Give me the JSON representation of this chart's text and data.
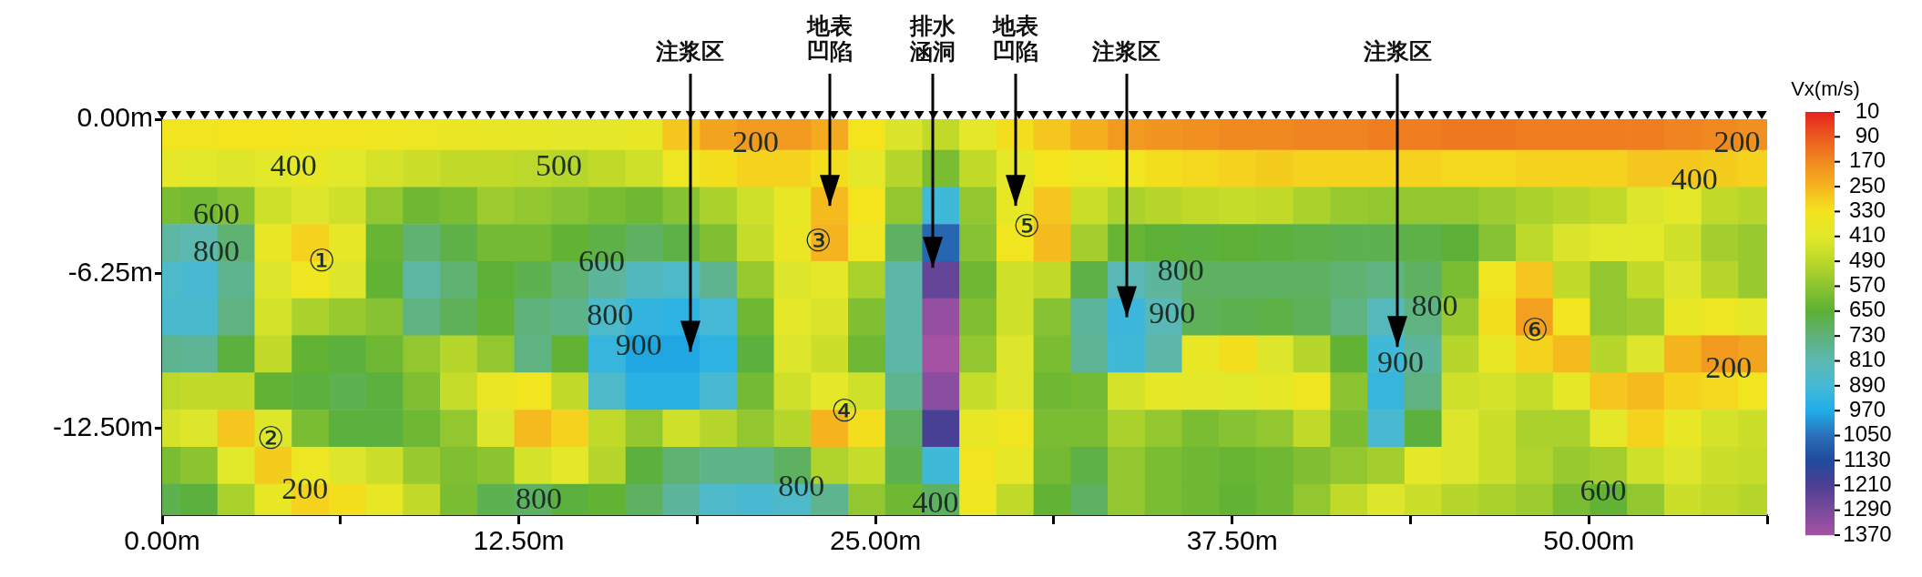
{
  "chart_data": {
    "type": "scatter",
    "marker": "square",
    "xlim": [
      0,
      56.25
    ],
    "xticks": [
      {
        "value": 0,
        "label": "0.00m"
      },
      {
        "value": 6.25,
        "label": null
      },
      {
        "value": 12.5,
        "label": "12.50m"
      },
      {
        "value": 18.75,
        "label": null
      },
      {
        "value": 25,
        "label": "25.00m"
      },
      {
        "value": 31.25,
        "label": null
      },
      {
        "value": 37.5,
        "label": "37.50m"
      },
      {
        "value": 43.75,
        "label": null
      },
      {
        "value": 50,
        "label": "50.00m"
      },
      {
        "value": 56.25,
        "label": null
      }
    ],
    "ylim": [
      -16,
      0
    ],
    "yticks": [
      {
        "value": 0,
        "label": "0.00m"
      },
      {
        "value": -6.25,
        "label": "-6.25m"
      },
      {
        "value": -12.5,
        "label": "-12.50m"
      }
    ],
    "clabel": "Vx(m/s)",
    "clim": [
      1370,
      10
    ],
    "cticks": [
      10,
      90,
      170,
      250,
      330,
      410,
      490,
      570,
      650,
      730,
      810,
      890,
      970,
      1050,
      1130,
      1210,
      1290,
      1370
    ],
    "colors": [
      "#a552a5",
      "#7a4a9c",
      "#4d3f93",
      "#1f4a9c",
      "#2a6fb8",
      "#1faee8",
      "#45b9d6",
      "#5cb8b0",
      "#5fb27a",
      "#5cb035",
      "#8cc430",
      "#bcd82a",
      "#e2e82a",
      "#f3e41e",
      "#f5b41e",
      "#f08a20",
      "#eb5a1f",
      "#e6231d"
    ],
    "series": [
      {
        "x": [
          0,
          1.3,
          2.6,
          3.9,
          5.2,
          6.5,
          7.8,
          9.1,
          10.4,
          11.7,
          13,
          14.3,
          15.6,
          16.9,
          18.2,
          19.5,
          20.8,
          22.1,
          23.4,
          24.7,
          26,
          27.3,
          28.6,
          29.9,
          31.2,
          32.5,
          33.8,
          35.1,
          36.4,
          37.7,
          39,
          40.3,
          41.6,
          42.9,
          44.2,
          45.5,
          46.8,
          48.1,
          49.4,
          50.7,
          52,
          53.3,
          54.6,
          55.9,
          0,
          1.3,
          2.6,
          3.9,
          5.2,
          6.5,
          7.8,
          9.1,
          10.4,
          11.7,
          13,
          14.3,
          15.6,
          16.9,
          18.2,
          19.5,
          20.8,
          22.1,
          23.4,
          24.7,
          26,
          27.3,
          28.6,
          29.9,
          31.2,
          32.5,
          33.8,
          35.1,
          36.4,
          37.7,
          39,
          40.3,
          41.6,
          42.9,
          44.2,
          45.5,
          46.8,
          48.1,
          49.4,
          50.7,
          52,
          53.3,
          54.6,
          55.9,
          0,
          1.3,
          2.6,
          3.9,
          5.2,
          6.5,
          7.8,
          9.1,
          10.4,
          11.7,
          13,
          14.3,
          15.6,
          16.9,
          18.2,
          19.5,
          20.8,
          22.1,
          23.4,
          24.7,
          26,
          27.3,
          28.6,
          29.9,
          31.2,
          32.5,
          33.8,
          35.1,
          36.4,
          37.7,
          39,
          40.3,
          41.6,
          42.9,
          44.2,
          45.5,
          46.8,
          48.1,
          49.4,
          50.7,
          52,
          53.3,
          54.6,
          55.9,
          0,
          1.3,
          2.6,
          3.9,
          5.2,
          6.5,
          7.8,
          9.1,
          10.4,
          11.7,
          13,
          14.3,
          15.6,
          16.9,
          18.2,
          19.5,
          20.8,
          22.1,
          23.4,
          24.7,
          26,
          27.3,
          28.6,
          29.9,
          31.2,
          32.5,
          33.8,
          35.1,
          36.4,
          37.7,
          39,
          40.3,
          41.6,
          42.9,
          44.2,
          45.5,
          46.8,
          48.1,
          49.4,
          50.7,
          52,
          53.3,
          54.6,
          55.9,
          0,
          1.3,
          2.6,
          3.9,
          5.2,
          6.5,
          7.8,
          9.1,
          10.4,
          11.7,
          13,
          14.3,
          15.6,
          16.9,
          18.2,
          19.5,
          20.8,
          22.1,
          23.4,
          24.7,
          26,
          27.3,
          28.6,
          29.9,
          31.2,
          32.5,
          33.8,
          35.1,
          36.4,
          37.7,
          39,
          40.3,
          41.6,
          42.9,
          44.2,
          45.5,
          46.8,
          48.1,
          49.4,
          50.7,
          52,
          53.3,
          54.6,
          55.9,
          0,
          1.3,
          2.6,
          3.9,
          5.2,
          6.5,
          7.8,
          9.1,
          10.4,
          11.7,
          13,
          14.3,
          15.6,
          16.9,
          18.2,
          19.5,
          20.8,
          22.1,
          23.4,
          24.7,
          26,
          27.3,
          28.6,
          29.9,
          31.2,
          32.5,
          33.8,
          35.1,
          36.4,
          37.7,
          39,
          40.3,
          41.6,
          42.9,
          44.2,
          45.5,
          46.8,
          48.1,
          49.4,
          50.7,
          52,
          53.3,
          54.6,
          55.9,
          0,
          1.3,
          2.6,
          3.9,
          5.2,
          6.5,
          7.8,
          9.1,
          10.4,
          11.7,
          13,
          14.3,
          15.6,
          16.9,
          18.2,
          19.5,
          20.8,
          22.1,
          23.4,
          24.7,
          26,
          27.3,
          28.6,
          29.9,
          31.2,
          32.5,
          33.8,
          35.1,
          36.4,
          37.7,
          39,
          40.3,
          41.6,
          42.9,
          44.2,
          45.5,
          46.8,
          48.1,
          49.4,
          50.7,
          52,
          53.3,
          54.6,
          55.9,
          0,
          1.3,
          2.6,
          3.9,
          5.2,
          6.5,
          7.8,
          9.1,
          10.4,
          11.7,
          13,
          14.3,
          15.6,
          16.9,
          18.2,
          19.5,
          20.8,
          22.1,
          23.4,
          24.7,
          26,
          27.3,
          28.6,
          29.9,
          31.2,
          32.5,
          33.8,
          35.1,
          36.4,
          37.7,
          39,
          40.3,
          41.6,
          42.9,
          44.2,
          45.5,
          46.8,
          48.1,
          49.4,
          50.7,
          52,
          53.3,
          54.6,
          55.9,
          0,
          1.3,
          2.6,
          3.9,
          5.2,
          6.5,
          7.8,
          9.1,
          10.4,
          11.7,
          13,
          14.3,
          15.6,
          16.9,
          18.2,
          19.5,
          20.8,
          22.1,
          23.4,
          24.7,
          26,
          27.3,
          28.6,
          29.9,
          31.2,
          32.5,
          33.8,
          35.1,
          36.4,
          37.7,
          39,
          40.3,
          41.6,
          42.9,
          44.2,
          45.5,
          46.8,
          48.1,
          49.4,
          50.7,
          52,
          53.3,
          54.6,
          55.9,
          0,
          1.3,
          2.6,
          3.9,
          5.2,
          6.5,
          7.8,
          9.1,
          10.4,
          11.7,
          13,
          14.3,
          15.6,
          16.9,
          18.2,
          19.5,
          20.8,
          22.1,
          23.4,
          24.7,
          26,
          27.3,
          28.6,
          29.9,
          31.2,
          32.5,
          33.8,
          35.1,
          36.4,
          37.7,
          39,
          40.3,
          41.6,
          42.9,
          44.2,
          45.5,
          46.8,
          48.1,
          49.4,
          50.7,
          52,
          53.3,
          54.6,
          55.9,
          0,
          1.3,
          2.6,
          3.9,
          5.2,
          6.5,
          7.8,
          9.1,
          10.4,
          11.7,
          13,
          14.3,
          15.6,
          16.9,
          18.2,
          19.5,
          20.8,
          22.1,
          23.4,
          24.7,
          26,
          27.3,
          28.6,
          29.9,
          31.2,
          32.5,
          33.8,
          35.1,
          36.4,
          37.7,
          39,
          40.3,
          41.6,
          42.9,
          44.2,
          45.5,
          46.8,
          48.1,
          49.4,
          50.7,
          52,
          53.3,
          54.6,
          55.9
        ],
        "values": [
          -0.5,
          -0.5,
          -0.5,
          -0.5,
          -0.5,
          -0.5,
          -0.5,
          -0.5,
          -0.5,
          -0.5,
          -0.5,
          -0.5,
          -0.5,
          -0.5,
          -0.5,
          -0.5,
          -0.5,
          -0.5,
          -0.5,
          -0.5,
          -0.5,
          -0.5,
          -0.5,
          -0.5,
          -0.5,
          -0.5,
          -0.5,
          -0.5,
          -0.5,
          -0.5,
          -0.5,
          -0.5,
          -0.5,
          -0.5,
          -0.5,
          -0.5,
          -0.5,
          -0.5,
          -0.5,
          -0.5,
          -0.5,
          -0.5,
          -0.5,
          -0.5,
          -2,
          -2,
          -2,
          -2,
          -2,
          -2,
          -2,
          -2,
          -2,
          -2,
          -2,
          -2,
          -2,
          -2,
          -2,
          -2,
          -2,
          -2,
          -2,
          -2,
          -2,
          -2,
          -2,
          -2,
          -2,
          -2,
          -2,
          -2,
          -2,
          -2,
          -2,
          -2,
          -2,
          -2,
          -2,
          -2,
          -2,
          -2,
          -2,
          -2,
          -2,
          -2,
          -2,
          -2,
          -3.5,
          -3.5,
          -3.5,
          -3.5,
          -3.5,
          -3.5,
          -3.5,
          -3.5,
          -3.5,
          -3.5,
          -3.5,
          -3.5,
          -3.5,
          -3.5,
          -3.5,
          -3.5,
          -3.5,
          -3.5,
          -3.5,
          -3.5,
          -3.5,
          -3.5,
          -3.5,
          -3.5,
          -3.5,
          -3.5,
          -3.5,
          -3.5,
          -3.5,
          -3.5,
          -3.5,
          -3.5,
          -3.5,
          -3.5,
          -3.5,
          -3.5,
          -3.5,
          -3.5,
          -3.5,
          -3.5,
          -3.5,
          -3.5,
          -3.5,
          -3.5,
          -5,
          -5,
          -5,
          -5,
          -5,
          -5,
          -5,
          -5,
          -5,
          -5,
          -5,
          -5,
          -5,
          -5,
          -5,
          -5,
          -5,
          -5,
          -5,
          -5,
          -5,
          -5,
          -5,
          -5,
          -5,
          -5,
          -5,
          -5,
          -5,
          -5,
          -5,
          -5,
          -5,
          -5,
          -5,
          -5,
          -5,
          -5,
          -5,
          -5,
          -5,
          -5,
          -5,
          -5,
          -6.5,
          -6.5,
          -6.5,
          -6.5,
          -6.5,
          -6.5,
          -6.5,
          -6.5,
          -6.5,
          -6.5,
          -6.5,
          -6.5,
          -6.5,
          -6.5,
          -6.5,
          -6.5,
          -6.5,
          -6.5,
          -6.5,
          -6.5,
          -6.5,
          -6.5,
          -6.5,
          -6.5,
          -6.5,
          -6.5,
          -6.5,
          -6.5,
          -6.5,
          -6.5,
          -6.5,
          -6.5,
          -6.5,
          -6.5,
          -6.5,
          -6.5,
          -6.5,
          -6.5,
          -6.5,
          -6.5,
          -6.5,
          -6.5,
          -6.5,
          -6.5,
          -8,
          -8,
          -8,
          -8,
          -8,
          -8,
          -8,
          -8,
          -8,
          -8,
          -8,
          -8,
          -8,
          -8,
          -8,
          -8,
          -8,
          -8,
          -8,
          -8,
          -8,
          -8,
          -8,
          -8,
          -8,
          -8,
          -8,
          -8,
          -8,
          -8,
          -8,
          -8,
          -8,
          -8,
          -8,
          -8,
          -8,
          -8,
          -8,
          -8,
          -8,
          -8,
          -8,
          -8,
          -9.5,
          -9.5,
          -9.5,
          -9.5,
          -9.5,
          -9.5,
          -9.5,
          -9.5,
          -9.5,
          -9.5,
          -9.5,
          -9.5,
          -9.5,
          -9.5,
          -9.5,
          -9.5,
          -9.5,
          -9.5,
          -9.5,
          -9.5,
          -9.5,
          -9.5,
          -9.5,
          -9.5,
          -9.5,
          -9.5,
          -9.5,
          -9.5,
          -9.5,
          -9.5,
          -9.5,
          -9.5,
          -9.5,
          -9.5,
          -9.5,
          -9.5,
          -9.5,
          -9.5,
          -9.5,
          -9.5,
          -9.5,
          -9.5,
          -9.5,
          -9.5,
          -11,
          -11,
          -11,
          -11,
          -11,
          -11,
          -11,
          -11,
          -11,
          -11,
          -11,
          -11,
          -11,
          -11,
          -11,
          -11,
          -11,
          -11,
          -11,
          -11,
          -11,
          -11,
          -11,
          -11,
          -11,
          -11,
          -11,
          -11,
          -11,
          -11,
          -11,
          -11,
          -11,
          -11,
          -11,
          -11,
          -11,
          -11,
          -11,
          -11,
          -11,
          -11,
          -11,
          -11,
          -12.5,
          -12.5,
          -12.5,
          -12.5,
          -12.5,
          -12.5,
          -12.5,
          -12.5,
          -12.5,
          -12.5,
          -12.5,
          -12.5,
          -12.5,
          -12.5,
          -12.5,
          -12.5,
          -12.5,
          -12.5,
          -12.5,
          -12.5,
          -12.5,
          -12.5,
          -12.5,
          -12.5,
          -12.5,
          -12.5,
          -12.5,
          -12.5,
          -12.5,
          -12.5,
          -12.5,
          -12.5,
          -12.5,
          -12.5,
          -12.5,
          -12.5,
          -12.5,
          -12.5,
          -12.5,
          -12.5,
          -12.5,
          -12.5,
          -12.5,
          -12.5,
          -14,
          -14,
          -14,
          -14,
          -14,
          -14,
          -14,
          -14,
          -14,
          -14,
          -14,
          -14,
          -14,
          -14,
          -14,
          -14,
          -14,
          -14,
          -14,
          -14,
          -14,
          -14,
          -14,
          -14,
          -14,
          -14,
          -14,
          -14,
          -14,
          -14,
          -14,
          -14,
          -14,
          -14,
          -14,
          -14,
          -14,
          -14,
          -14,
          -14,
          -14,
          -14,
          -14,
          -14,
          -15.5,
          -15.5,
          -15.5,
          -15.5,
          -15.5,
          -15.5,
          -15.5,
          -15.5,
          -15.5,
          -15.5,
          -15.5,
          -15.5,
          -15.5,
          -15.5,
          -15.5,
          -15.5,
          -15.5,
          -15.5,
          -15.5,
          -15.5,
          -15.5,
          -15.5,
          -15.5,
          -15.5,
          -15.5,
          -15.5,
          -15.5,
          -15.5,
          -15.5,
          -15.5,
          -15.5,
          -15.5,
          -15.5,
          -15.5,
          -15.5,
          -15.5,
          -15.5,
          -15.5,
          -15.5,
          -15.5,
          -15.5,
          -15.5,
          -15.5,
          -15.5
        ],
        "cvalues": [
          340,
          340,
          330,
          330,
          340,
          340,
          350,
          360,
          370,
          380,
          390,
          400,
          400,
          380,
          280,
          220,
          200,
          200,
          230,
          330,
          430,
          480,
          400,
          320,
          280,
          240,
          200,
          190,
          180,
          170,
          170,
          160,
          160,
          150,
          150,
          140,
          140,
          150,
          150,
          150,
          150,
          160,
          170,
          180,
          400,
          410,
          420,
          410,
          380,
          410,
          440,
          460,
          480,
          480,
          490,
          500,
          480,
          450,
          360,
          320,
          300,
          300,
          320,
          400,
          500,
          600,
          480,
          400,
          330,
          360,
          340,
          320,
          310,
          300,
          290,
          300,
          300,
          300,
          300,
          310,
          310,
          300,
          300,
          300,
          280,
          280,
          290,
          300,
          600,
          610,
          580,
          450,
          420,
          450,
          560,
          620,
          600,
          540,
          560,
          580,
          600,
          620,
          580,
          520,
          450,
          380,
          260,
          330,
          560,
          900,
          560,
          380,
          280,
          460,
          520,
          500,
          480,
          470,
          480,
          520,
          550,
          560,
          560,
          560,
          540,
          520,
          500,
          480,
          420,
          400,
          480,
          500,
          790,
          810,
          720,
          380,
          300,
          390,
          630,
          720,
          670,
          610,
          610,
          640,
          670,
          700,
          670,
          590,
          470,
          370,
          250,
          360,
          700,
          1070,
          580,
          340,
          260,
          530,
          630,
          650,
          660,
          650,
          660,
          670,
          680,
          680,
          670,
          650,
          580,
          490,
          430,
          410,
          410,
          450,
          530,
          550,
          860,
          880,
          760,
          420,
          350,
          420,
          640,
          790,
          720,
          650,
          680,
          720,
          780,
          840,
          860,
          760,
          550,
          420,
          400,
          520,
          800,
          1250,
          620,
          450,
          480,
          670,
          820,
          780,
          700,
          700,
          700,
          700,
          720,
          740,
          700,
          600,
          350,
          280,
          480,
          560,
          480,
          420,
          500,
          550,
          870,
          870,
          740,
          440,
          520,
          550,
          580,
          740,
          690,
          640,
          730,
          750,
          860,
          930,
          940,
          890,
          620,
          400,
          430,
          590,
          800,
          1340,
          590,
          450,
          580,
          780,
          910,
          820,
          690,
          680,
          670,
          690,
          740,
          830,
          740,
          550,
          320,
          210,
          340,
          560,
          540,
          380,
          360,
          400,
          760,
          770,
          660,
          480,
          640,
          660,
          620,
          560,
          500,
          560,
          740,
          640,
          920,
          980,
          980,
          940,
          660,
          420,
          460,
          620,
          800,
          1370,
          560,
          420,
          600,
          770,
          900,
          800,
          380,
          320,
          420,
          500,
          640,
          900,
          780,
          500,
          380,
          300,
          260,
          500,
          420,
          250,
          200,
          220,
          490,
          480,
          480,
          640,
          660,
          680,
          660,
          590,
          470,
          370,
          340,
          480,
          860,
          950,
          950,
          880,
          610,
          450,
          400,
          450,
          760,
          1320,
          470,
          420,
          620,
          610,
          440,
          390,
          400,
          410,
          390,
          350,
          570,
          920,
          740,
          450,
          440,
          470,
          390,
          280,
          260,
          300,
          310,
          340,
          440,
          420,
          280,
          420,
          600,
          660,
          660,
          620,
          560,
          420,
          260,
          300,
          480,
          560,
          450,
          500,
          560,
          500,
          250,
          320,
          700,
          1200,
          380,
          350,
          600,
          600,
          520,
          560,
          600,
          580,
          560,
          480,
          600,
          880,
          660,
          420,
          460,
          520,
          520,
          400,
          300,
          380,
          440,
          460,
          600,
          570,
          410,
          290,
          360,
          420,
          460,
          550,
          590,
          570,
          440,
          400,
          500,
          660,
          720,
          750,
          750,
          700,
          510,
          470,
          680,
          900,
          340,
          390,
          610,
          670,
          560,
          600,
          620,
          630,
          620,
          590,
          560,
          530,
          400,
          420,
          460,
          510,
          550,
          530,
          450,
          420,
          460,
          470,
          680,
          660,
          520,
          380,
          300,
          320,
          380,
          480,
          600,
          680,
          700,
          660,
          640,
          700,
          780,
          860,
          880,
          860,
          760,
          560,
          620,
          700,
          350,
          480,
          640,
          700,
          560,
          600,
          620,
          640,
          620,
          560,
          480,
          420,
          460,
          500,
          520,
          540,
          600,
          640,
          560,
          460,
          480,
          500
        ]
      }
    ],
    "annotations": [
      "注浆区",
      {
        "text": "地表凹陷",
        "x": 23.4,
        "y": -3.5
      },
      "排水涵洞",
      {
        "text": "地表凹陷",
        "x": 29.9,
        "y": -3.5
      },
      {
        "text": "注浆区",
        "x": 33.8,
        "y": -8
      },
      "注浆区",
      "①",
      "②",
      "③",
      "④",
      "⑤",
      "⑥",
      "400",
      "500",
      "600",
      "800",
      "600",
      "800",
      "900",
      "200",
      "800",
      "200",
      "800",
      "400",
      "800",
      "900",
      "200",
      "400",
      "800",
      "900",
      "200",
      "600"
    ]
  }
}
